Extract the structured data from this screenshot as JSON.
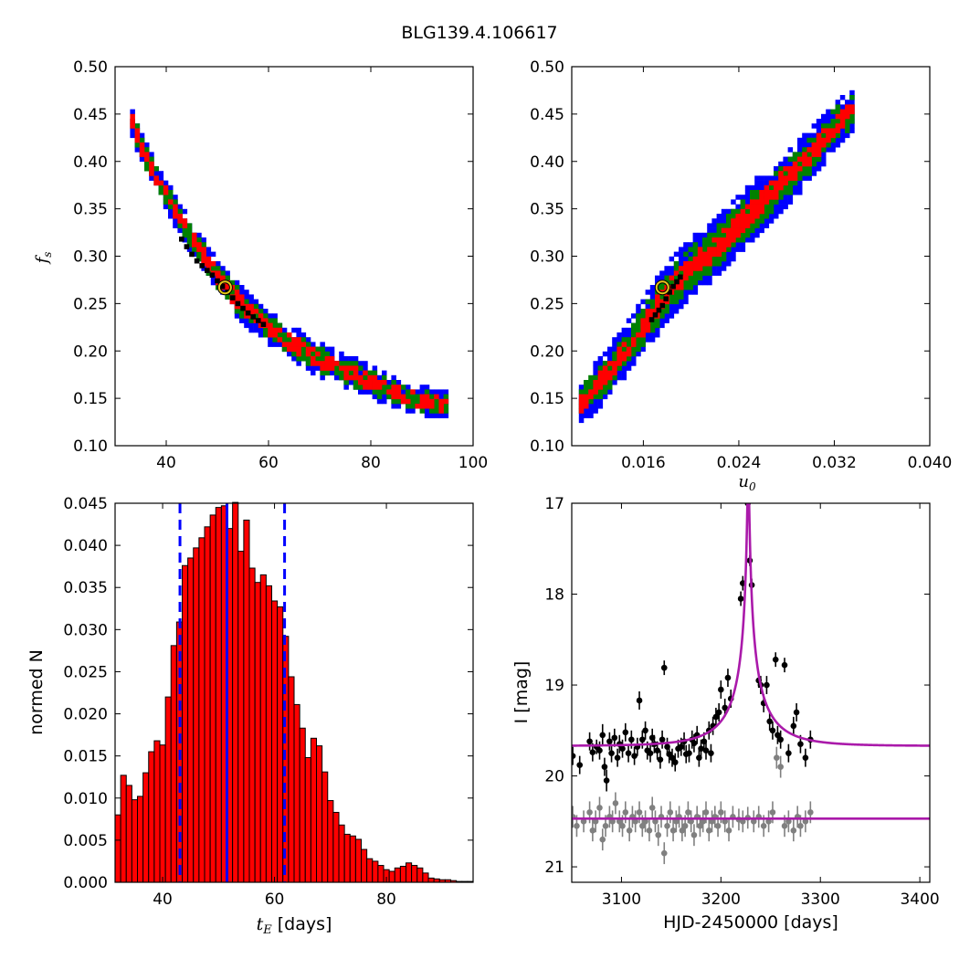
{
  "title": "BLG139.4.106617",
  "chart_data": [
    {
      "id": "fs_vs_tE",
      "type": "heatmap",
      "xlim": [
        30,
        100
      ],
      "ylim": [
        0.1,
        0.5
      ],
      "xticks": [
        "40",
        "60",
        "80",
        "100"
      ],
      "yticks": [
        "0.10",
        "0.15",
        "0.20",
        "0.25",
        "0.30",
        "0.35",
        "0.40",
        "0.45",
        "0.50"
      ],
      "xlabel": "",
      "ylabel": "f_s",
      "levels": [
        {
          "color": "#0000ff",
          "half_width": 0.012
        },
        {
          "color": "#008000",
          "half_width": 0.008
        },
        {
          "color": "#ff0000",
          "half_width": 0.0045
        }
      ],
      "ridge": [
        [
          32,
          0.455
        ],
        [
          35,
          0.41
        ],
        [
          40,
          0.36
        ],
        [
          45,
          0.315
        ],
        [
          50,
          0.275
        ],
        [
          55,
          0.245
        ],
        [
          60,
          0.222
        ],
        [
          65,
          0.205
        ],
        [
          70,
          0.19
        ],
        [
          75,
          0.178
        ],
        [
          80,
          0.166
        ],
        [
          85,
          0.155
        ],
        [
          90,
          0.147
        ],
        [
          95,
          0.142
        ]
      ],
      "best_chain": [
        [
          43,
          0.318
        ],
        [
          44,
          0.31
        ],
        [
          45,
          0.302
        ],
        [
          46,
          0.295
        ],
        [
          47,
          0.29
        ],
        [
          48,
          0.285
        ],
        [
          49,
          0.28
        ],
        [
          50,
          0.274
        ],
        [
          51,
          0.268
        ],
        [
          52,
          0.262
        ],
        [
          53,
          0.256
        ],
        [
          54,
          0.25
        ],
        [
          55,
          0.245
        ],
        [
          56,
          0.24
        ],
        [
          57,
          0.236
        ],
        [
          58,
          0.232
        ],
        [
          59,
          0.228
        ]
      ],
      "best_fit": [
        51.5,
        0.267
      ]
    },
    {
      "id": "fs_vs_u0",
      "type": "heatmap",
      "xlim": [
        0.01,
        0.04
      ],
      "ylim": [
        0.1,
        0.5
      ],
      "xticks": [
        "0.016",
        "0.024",
        "0.032",
        "0.040"
      ],
      "yticks": [
        "0.10",
        "0.15",
        "0.20",
        "0.25",
        "0.30",
        "0.35",
        "0.40",
        "0.45",
        "0.50"
      ],
      "xlabel": "u_0",
      "ylabel": "",
      "levels": [
        {
          "color": "#0000ff",
          "half_width": 0.022
        },
        {
          "color": "#008000",
          "half_width": 0.014
        },
        {
          "color": "#ff0000",
          "half_width": 0.007
        }
      ],
      "ridge": [
        [
          0.0106,
          0.145
        ],
        [
          0.012,
          0.165
        ],
        [
          0.014,
          0.195
        ],
        [
          0.016,
          0.23
        ],
        [
          0.018,
          0.265
        ],
        [
          0.02,
          0.29
        ],
        [
          0.022,
          0.31
        ],
        [
          0.024,
          0.335
        ],
        [
          0.026,
          0.36
        ],
        [
          0.028,
          0.385
        ],
        [
          0.03,
          0.41
        ],
        [
          0.032,
          0.44
        ],
        [
          0.0335,
          0.455
        ]
      ],
      "best_chain": [
        [
          0.0167,
          0.233
        ],
        [
          0.017,
          0.238
        ],
        [
          0.0173,
          0.243
        ],
        [
          0.0176,
          0.248
        ],
        [
          0.0179,
          0.255
        ],
        [
          0.0182,
          0.262
        ],
        [
          0.0185,
          0.268
        ],
        [
          0.0188,
          0.273
        ],
        [
          0.0191,
          0.278
        ]
      ],
      "best_fit": [
        0.0176,
        0.267
      ]
    },
    {
      "id": "tE_histogram",
      "type": "bar",
      "xlim": [
        31.5,
        95.5
      ],
      "ylim": [
        0.0,
        0.045
      ],
      "bin_start": 31.5,
      "bin_width": 1.0,
      "values": [
        0.008,
        0.0127,
        0.0115,
        0.0098,
        0.0102,
        0.013,
        0.0155,
        0.0168,
        0.0163,
        0.022,
        0.0281,
        0.0309,
        0.0376,
        0.0385,
        0.0397,
        0.0409,
        0.0422,
        0.0436,
        0.0445,
        0.0447,
        0.042,
        0.0451,
        0.0393,
        0.043,
        0.0373,
        0.0356,
        0.0365,
        0.0352,
        0.0334,
        0.0327,
        0.0292,
        0.0244,
        0.0211,
        0.0183,
        0.0148,
        0.0171,
        0.0162,
        0.0131,
        0.0097,
        0.0083,
        0.0068,
        0.0057,
        0.0055,
        0.0051,
        0.0039,
        0.0028,
        0.0025,
        0.002,
        0.0015,
        0.0013,
        0.0017,
        0.0019,
        0.0023,
        0.002,
        0.0017,
        0.0011,
        0.0005,
        0.0004,
        0.0003,
        0.0003,
        0.0002,
        0.0001,
        0.0001,
        0.0001
      ],
      "bar_color": "#ff0000",
      "vlines": [
        43.1,
        51.5,
        61.8
      ],
      "vline_styles": [
        "dashed",
        "solid",
        "dashed"
      ],
      "vline_color": "#0000ff",
      "xticks": [
        "40",
        "60",
        "80"
      ],
      "yticks": [
        "0.000",
        "0.005",
        "0.010",
        "0.015",
        "0.020",
        "0.025",
        "0.030",
        "0.035",
        "0.040",
        "0.045"
      ],
      "xlabel_var": "t",
      "xlabel_sub": "E",
      "xlabel_unit": "[days]",
      "ylabel": "normed N"
    },
    {
      "id": "light_curve",
      "type": "scatter",
      "xlim": [
        3050,
        3410
      ],
      "ylim": [
        21.17,
        17.0
      ],
      "xticks": [
        "3100",
        "3200",
        "3300",
        "3400"
      ],
      "yticks": [
        "17",
        "18",
        "19",
        "20",
        "21"
      ],
      "xlabel": "HJD-2450000 [days]",
      "ylabel": "I [mag]",
      "model": {
        "t0": 3227.5,
        "tE": 51.5,
        "u0": 0.0176,
        "baseline": 19.67,
        "color": "#aa1aaa"
      },
      "residual_baseline": 20.47,
      "points": [
        [
          3051,
          19.78,
          0.1
        ],
        [
          3058,
          19.88,
          0.1
        ],
        [
          3068,
          19.62,
          0.1
        ],
        [
          3071,
          19.74,
          0.1
        ],
        [
          3075,
          19.68,
          0.08
        ],
        [
          3078,
          19.72,
          0.1
        ],
        [
          3081,
          19.55,
          0.12
        ],
        [
          3083,
          19.9,
          0.1
        ],
        [
          3085,
          20.05,
          0.12
        ],
        [
          3088,
          19.62,
          0.1
        ],
        [
          3090,
          19.75,
          0.1
        ],
        [
          3093,
          19.58,
          0.1
        ],
        [
          3096,
          19.8,
          0.1
        ],
        [
          3098,
          19.65,
          0.1
        ],
        [
          3101,
          19.7,
          0.1
        ],
        [
          3104,
          19.52,
          0.1
        ],
        [
          3107,
          19.75,
          0.1
        ],
        [
          3110,
          19.6,
          0.1
        ],
        [
          3113,
          19.78,
          0.1
        ],
        [
          3116,
          19.68,
          0.1
        ],
        [
          3118,
          19.17,
          0.1
        ],
        [
          3121,
          19.6,
          0.1
        ],
        [
          3124,
          19.5,
          0.1
        ],
        [
          3126,
          19.72,
          0.1
        ],
        [
          3129,
          19.75,
          0.1
        ],
        [
          3131,
          19.58,
          0.1
        ],
        [
          3133,
          19.65,
          0.1
        ],
        [
          3136,
          19.72,
          0.1
        ],
        [
          3139,
          19.82,
          0.1
        ],
        [
          3141,
          19.6,
          0.1
        ],
        [
          3143,
          18.81,
          0.08
        ],
        [
          3146,
          19.68,
          0.1
        ],
        [
          3148,
          19.76,
          0.1
        ],
        [
          3151,
          19.8,
          0.1
        ],
        [
          3154,
          19.85,
          0.1
        ],
        [
          3157,
          19.7,
          0.1
        ],
        [
          3160,
          19.68,
          0.1
        ],
        [
          3163,
          19.62,
          0.1
        ],
        [
          3165,
          19.76,
          0.1
        ],
        [
          3168,
          19.75,
          0.1
        ],
        [
          3171,
          19.6,
          0.1
        ],
        [
          3173,
          19.64,
          0.1
        ],
        [
          3176,
          19.55,
          0.1
        ],
        [
          3178,
          19.8,
          0.1
        ],
        [
          3180,
          19.7,
          0.1
        ],
        [
          3183,
          19.62,
          0.1
        ],
        [
          3185,
          19.72,
          0.1
        ],
        [
          3188,
          19.5,
          0.1
        ],
        [
          3190,
          19.75,
          0.1
        ],
        [
          3192,
          19.45,
          0.1
        ],
        [
          3195,
          19.35,
          0.1
        ],
        [
          3198,
          19.3,
          0.1
        ],
        [
          3200,
          19.05,
          0.1
        ],
        [
          3204,
          19.25,
          0.1
        ],
        [
          3207,
          18.92,
          0.1
        ],
        [
          3210,
          19.15,
          0.1
        ],
        [
          3220,
          18.05,
          0.08
        ],
        [
          3222,
          17.88,
          0.08
        ],
        [
          3227,
          17.0,
          0.05
        ],
        [
          3229,
          17.63,
          0.06
        ],
        [
          3231,
          17.9,
          0.07
        ],
        [
          3238,
          18.95,
          0.08
        ],
        [
          3240,
          19.0,
          0.1
        ],
        [
          3243,
          19.2,
          0.1
        ],
        [
          3246,
          19.0,
          0.1
        ],
        [
          3249,
          19.4,
          0.1
        ],
        [
          3252,
          19.5,
          0.1
        ],
        [
          3255,
          18.72,
          0.08
        ],
        [
          3257,
          19.55,
          0.1
        ],
        [
          3260,
          19.6,
          0.1
        ],
        [
          3264,
          18.78,
          0.08
        ],
        [
          3268,
          19.75,
          0.1
        ],
        [
          3273,
          19.45,
          0.1
        ],
        [
          3276,
          19.3,
          0.1
        ],
        [
          3280,
          19.65,
          0.1
        ],
        [
          3285,
          19.8,
          0.1
        ],
        [
          3290,
          19.6,
          0.1
        ]
      ],
      "residual_points": [
        [
          3051,
          20.45,
          0.12
        ],
        [
          3055,
          20.55,
          0.12
        ],
        [
          3062,
          20.5,
          0.12
        ],
        [
          3068,
          20.4,
          0.12
        ],
        [
          3071,
          20.6,
          0.12
        ],
        [
          3074,
          20.5,
          0.12
        ],
        [
          3078,
          20.35,
          0.12
        ],
        [
          3081,
          20.7,
          0.12
        ],
        [
          3084,
          20.55,
          0.12
        ],
        [
          3088,
          20.45,
          0.12
        ],
        [
          3091,
          20.5,
          0.12
        ],
        [
          3094,
          20.3,
          0.12
        ],
        [
          3098,
          20.5,
          0.12
        ],
        [
          3101,
          20.55,
          0.12
        ],
        [
          3104,
          20.4,
          0.12
        ],
        [
          3108,
          20.6,
          0.12
        ],
        [
          3111,
          20.45,
          0.12
        ],
        [
          3114,
          20.5,
          0.12
        ],
        [
          3118,
          20.4,
          0.12
        ],
        [
          3121,
          20.55,
          0.12
        ],
        [
          3124,
          20.5,
          0.12
        ],
        [
          3128,
          20.6,
          0.12
        ],
        [
          3131,
          20.35,
          0.12
        ],
        [
          3134,
          20.5,
          0.12
        ],
        [
          3137,
          20.65,
          0.12
        ],
        [
          3140,
          20.45,
          0.12
        ],
        [
          3143,
          20.85,
          0.12
        ],
        [
          3146,
          20.55,
          0.12
        ],
        [
          3149,
          20.4,
          0.12
        ],
        [
          3152,
          20.6,
          0.12
        ],
        [
          3155,
          20.5,
          0.12
        ],
        [
          3158,
          20.45,
          0.12
        ],
        [
          3161,
          20.6,
          0.12
        ],
        [
          3164,
          20.55,
          0.12
        ],
        [
          3167,
          20.4,
          0.12
        ],
        [
          3170,
          20.5,
          0.12
        ],
        [
          3173,
          20.65,
          0.12
        ],
        [
          3176,
          20.45,
          0.12
        ],
        [
          3179,
          20.55,
          0.12
        ],
        [
          3182,
          20.5,
          0.12
        ],
        [
          3185,
          20.4,
          0.12
        ],
        [
          3188,
          20.6,
          0.12
        ],
        [
          3191,
          20.5,
          0.12
        ],
        [
          3194,
          20.45,
          0.12
        ],
        [
          3197,
          20.55,
          0.12
        ],
        [
          3200,
          20.4,
          0.12
        ],
        [
          3204,
          20.5,
          0.12
        ],
        [
          3208,
          20.6,
          0.12
        ],
        [
          3212,
          20.45,
          0.12
        ],
        [
          3218,
          20.48,
          0.12
        ],
        [
          3222,
          20.5,
          0.12
        ],
        [
          3227,
          20.46,
          0.12
        ],
        [
          3233,
          20.5,
          0.12
        ],
        [
          3238,
          20.45,
          0.12
        ],
        [
          3243,
          20.55,
          0.12
        ],
        [
          3248,
          20.5,
          0.12
        ],
        [
          3252,
          20.4,
          0.12
        ],
        [
          3256,
          19.8,
          0.12
        ],
        [
          3260,
          19.9,
          0.12
        ],
        [
          3264,
          20.55,
          0.12
        ],
        [
          3268,
          20.5,
          0.12
        ],
        [
          3273,
          20.6,
          0.12
        ],
        [
          3277,
          20.45,
          0.12
        ],
        [
          3280,
          20.55,
          0.12
        ],
        [
          3285,
          20.5,
          0.12
        ],
        [
          3290,
          20.4,
          0.12
        ]
      ],
      "point_color": "#000000",
      "residual_color": "#808080"
    }
  ]
}
